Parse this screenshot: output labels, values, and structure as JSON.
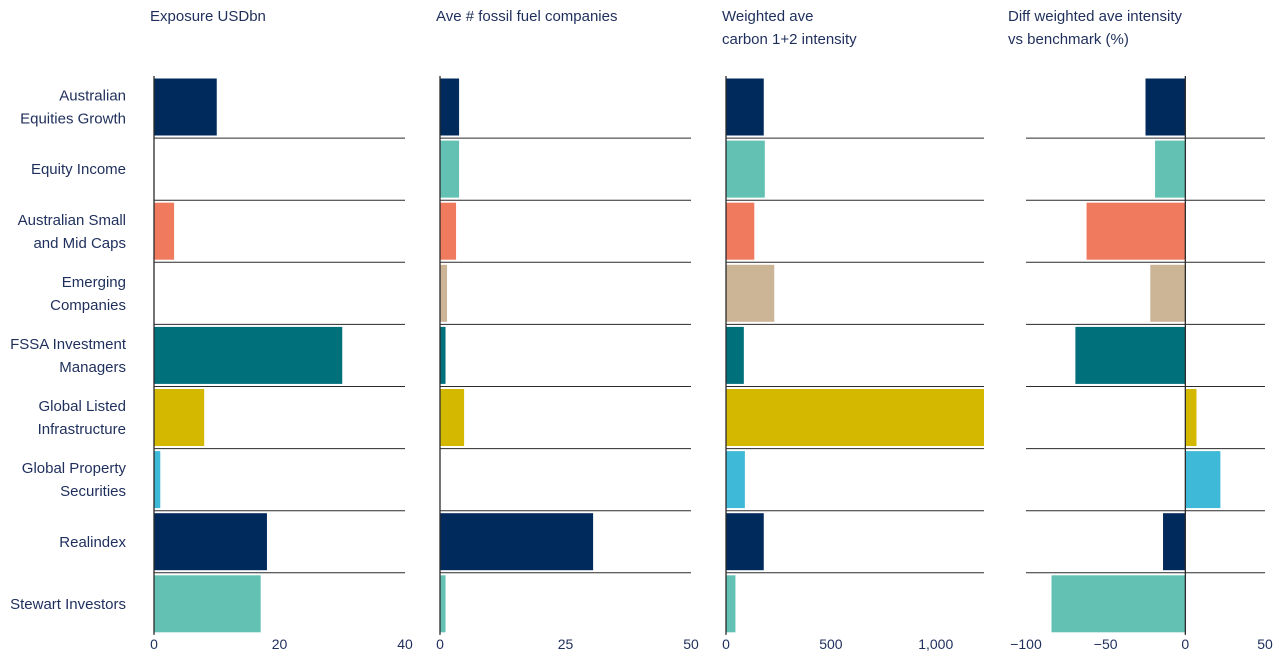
{
  "chart_data": {
    "type": "bar",
    "orientation": "horizontal",
    "categories": [
      "Australian\nEquities Growth",
      "Equity Income",
      "Australian Small\nand Mid Caps",
      "Emerging\nCompanies",
      "FSSA Investment\nManagers",
      "Global Listed\nInfrastructure",
      "Global Property\nSecurities",
      "Realindex",
      "Stewart Investors"
    ],
    "colors": [
      "#002a5c",
      "#62c1b2",
      "#f07a5e",
      "#ccb497",
      "#00707a",
      "#d4b800",
      "#3fb9d8",
      "#002a5c",
      "#62c1b2"
    ],
    "panels": [
      {
        "title": "Exposure USDbn",
        "xlim": [
          0,
          40
        ],
        "ticks": [
          0,
          20,
          40
        ],
        "tick_labels": [
          "0",
          "20",
          "40"
        ],
        "values": [
          10,
          0,
          3.2,
          0,
          30,
          8,
          1,
          18,
          17
        ]
      },
      {
        "title": "Ave # fossil fuel companies",
        "xlim": [
          0,
          50
        ],
        "ticks": [
          0,
          25,
          50
        ],
        "tick_labels": [
          "0",
          "25",
          "50"
        ],
        "values": [
          3.8,
          3.8,
          3.2,
          1.4,
          1.1,
          4.8,
          0,
          30.5,
          1.1
        ]
      },
      {
        "title": "Weighted ave\ncarbon 1+2 intensity",
        "xlim": [
          0,
          1230
        ],
        "ticks": [
          0,
          500,
          1000
        ],
        "tick_labels": [
          "0",
          "500",
          "1,000"
        ],
        "values": [
          180,
          185,
          135,
          230,
          85,
          1230,
          90,
          180,
          45
        ]
      },
      {
        "title": "Diff weighted ave intensity\nvs benchmark (%)",
        "xlim": [
          -100,
          50
        ],
        "ticks": [
          -100,
          -50,
          0,
          50
        ],
        "tick_labels": [
          "−100",
          "−50",
          "0",
          "50"
        ],
        "values": [
          -25,
          -19,
          -62,
          -22,
          -69,
          7,
          22,
          -14,
          -84
        ]
      }
    ],
    "grid": false,
    "legend": "none"
  }
}
